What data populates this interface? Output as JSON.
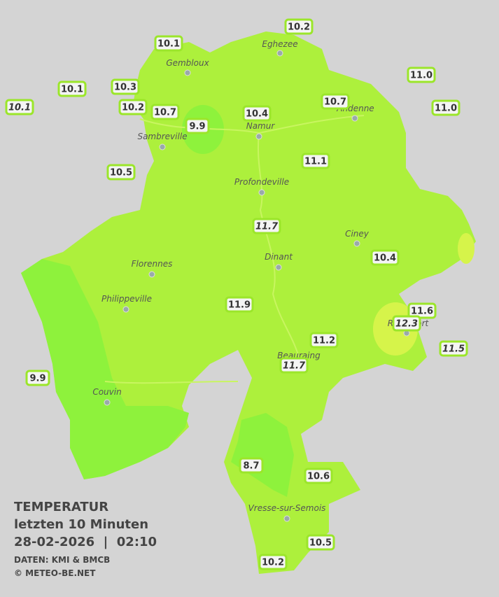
{
  "stations": [
    "10.1",
    "10.2",
    "11.0",
    "10.1",
    "10.3",
    "10.1",
    "10.2",
    "10.7",
    "10.7",
    "11.0",
    "10.4",
    "9.9",
    "11.1",
    "10.5",
    "11.7",
    "10.4",
    "11.9",
    "11.6",
    "12.3",
    "11.2",
    "11.5",
    "11.7",
    "9.9",
    "8.7",
    "10.6",
    "10.5",
    "10.2"
  ],
  "towns": [
    "Gembloux",
    "Eghezee",
    "Andenne",
    "Namur",
    "Sambreville",
    "Profondeville",
    "Ciney",
    "Dinant",
    "Florennes",
    "Philippeville",
    "Rochefort",
    "Beauraing",
    "Couvin",
    "Vresse-sur-Semois"
  ],
  "legend": {
    "title": "TEMPERATUR",
    "period": "letzten 10 Minuten",
    "datetime": "28-02-2026  |  02:10",
    "source": "DATEN: KMI & BMCB",
    "copyright": "© METEO-BE.NET"
  }
}
